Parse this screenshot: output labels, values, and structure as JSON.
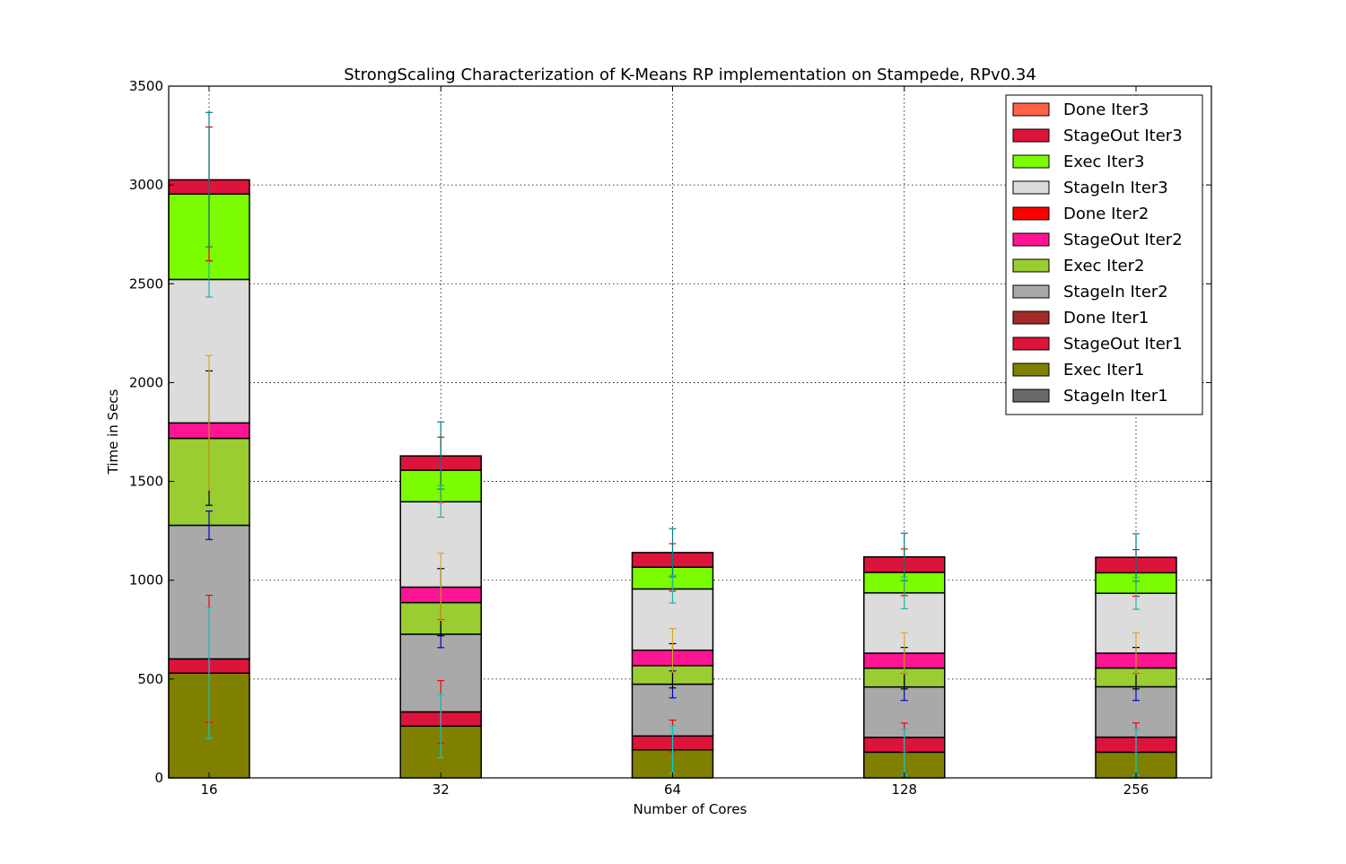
{
  "chart_data": {
    "type": "bar",
    "stacked": true,
    "title": "StrongScaling Characterization of K-Means RP implementation on Stampede, RPv0.34",
    "xlabel": "Number of Cores",
    "ylabel": "Time in Secs",
    "categories": [
      "16",
      "32",
      "64",
      "128",
      "256"
    ],
    "ylim": [
      0,
      3500
    ],
    "yticks": [
      0,
      500,
      1000,
      1500,
      2000,
      2500,
      3000,
      3500
    ],
    "grid": true,
    "legend_position": "top-right",
    "series": [
      {
        "name": "StageIn Iter1",
        "color": "#696969",
        "values": [
          0,
          0,
          0,
          0,
          0
        ]
      },
      {
        "name": "Exec Iter1",
        "color": "#808000",
        "values": [
          530,
          262,
          142,
          130,
          130
        ]
      },
      {
        "name": "StageOut Iter1",
        "color": "#dc143c",
        "values": [
          72,
          72,
          70,
          75,
          76
        ]
      },
      {
        "name": "Done Iter1",
        "color": "#a52a2a",
        "values": [
          0,
          0,
          0,
          0,
          0
        ]
      },
      {
        "name": "StageIn Iter2",
        "color": "#a9a9a9",
        "values": [
          676,
          393,
          262,
          255,
          255
        ]
      },
      {
        "name": "Exec Iter2",
        "color": "#9acd32",
        "values": [
          440,
          160,
          94,
          95,
          95
        ]
      },
      {
        "name": "StageOut Iter2",
        "color": "#ff1493",
        "values": [
          78,
          78,
          78,
          76,
          75
        ]
      },
      {
        "name": "Done Iter2",
        "color": "#ff0000",
        "values": [
          0,
          0,
          0,
          0,
          0
        ]
      },
      {
        "name": "StageIn Iter3",
        "color": "#dcdcdc",
        "values": [
          726,
          432,
          310,
          305,
          303
        ]
      },
      {
        "name": "Exec Iter3",
        "color": "#7cfc00",
        "values": [
          432,
          160,
          110,
          104,
          104
        ]
      },
      {
        "name": "StageOut Iter3",
        "color": "#dc143c",
        "values": [
          72,
          72,
          74,
          78,
          78
        ]
      },
      {
        "name": "Done Iter3",
        "color": "#ff6347",
        "values": [
          0,
          0,
          0,
          0,
          0
        ]
      }
    ],
    "error_bars": [
      {
        "color": "#0000cd",
        "center": [
          1278,
          729,
          473,
          460,
          460
        ],
        "err": [
          72,
          70,
          68,
          68,
          68
        ]
      },
      {
        "color": "#ff0000",
        "center": [
          602,
          334,
          212,
          205,
          206
        ],
        "err": [
          322,
          158,
          80,
          72,
          72
        ]
      },
      {
        "color": "#000000",
        "center": [
          1719,
          889,
          567,
          555,
          555
        ],
        "err": [
          340,
          170,
          112,
          105,
          105
        ]
      },
      {
        "color": "#daa520",
        "center": [
          1797,
          967,
          645,
          631,
          630
        ],
        "err": [
          340,
          170,
          110,
          104,
          104
        ]
      },
      {
        "color": "#ff0000",
        "center": [
          2955,
          1559,
          1065,
          1040,
          1037
        ],
        "err": [
          338,
          165,
          120,
          118,
          118
        ]
      },
      {
        "color": "#008080",
        "center": [
          3027,
          1631,
          1139,
          1118,
          1115
        ],
        "err": [
          340,
          170,
          122,
          120,
          120
        ]
      },
      {
        "color": "#20b2aa",
        "center": [
          2523,
          1399,
          955,
          936,
          933
        ],
        "err": [
          90,
          80,
          70,
          80,
          80
        ]
      },
      {
        "color": "#00ced1",
        "center": [
          530,
          262,
          142,
          130,
          130
        ],
        "err": [
          330,
          160,
          120,
          115,
          115
        ]
      }
    ]
  }
}
